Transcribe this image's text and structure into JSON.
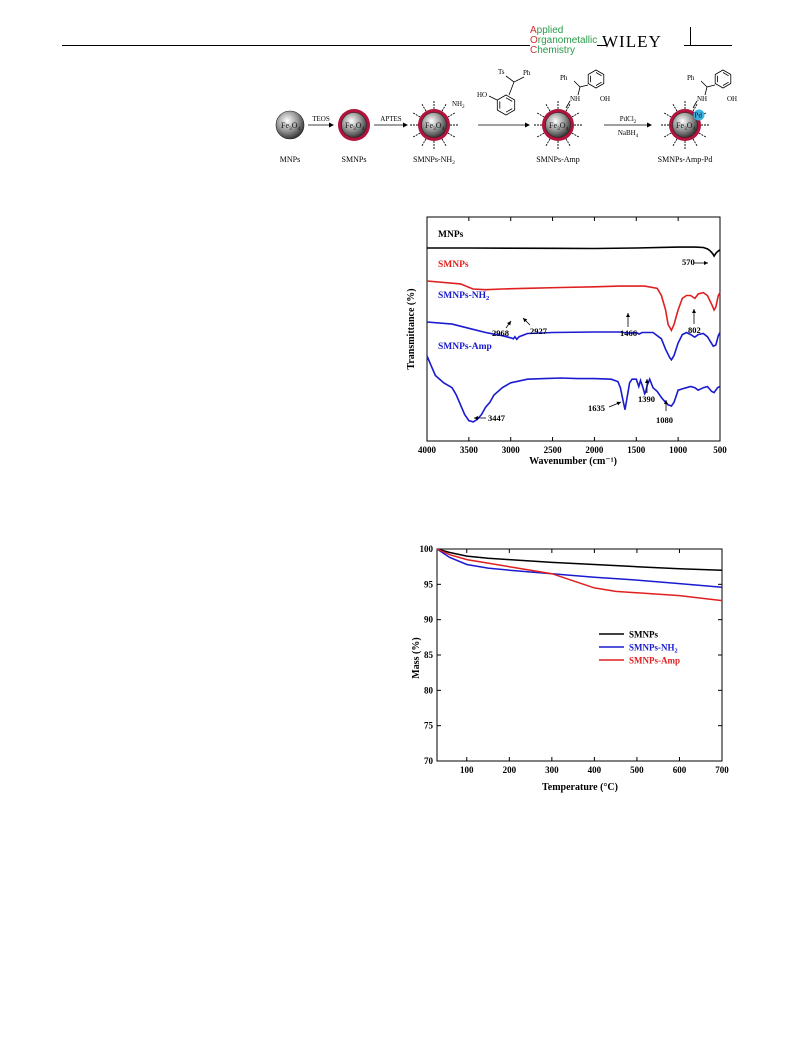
{
  "header": {
    "journal_line1_cap": "A",
    "journal_line1_rest": "pplied",
    "journal_line2_cap": "O",
    "journal_line2_rest": "rganometallic",
    "journal_line3_cap": "C",
    "journal_line3_rest": "hemistry",
    "publisher": "WILEY",
    "page_number": ""
  },
  "scheme": {
    "core_label": "Fe3O4",
    "steps": [
      "TEOS",
      "APTES",
      "",
      "PdCl2",
      "NaBH4"
    ],
    "particles": [
      "MNPs",
      "SMNPs",
      "SMNPs-NH2",
      "SMNPs-Amp",
      "SMNPs-Amp-Pd"
    ],
    "reagent": {
      "ts": "Ts",
      "ph": "Ph",
      "ho": "HO"
    },
    "amp": {
      "ph": "Ph",
      "nh": "NH",
      "oh": "OH"
    },
    "nh2": "NH2",
    "pd": "Pd",
    "colors": {
      "core": "#4a4a4a",
      "shell": "#b0143c",
      "pd": "#3cb4e6"
    }
  },
  "chart_data": [
    {
      "type": "line",
      "title": "",
      "xlabel": "Wavenumber (cm⁻¹)",
      "ylabel": "Transmittance (%)",
      "xlim": [
        4000,
        500
      ],
      "x_ticks": [
        4000,
        3500,
        3000,
        2500,
        2000,
        1500,
        1000,
        500
      ],
      "series": [
        {
          "name": "MNPs",
          "color": "#000000",
          "x": [
            4000,
            3500,
            3000,
            2500,
            2000,
            1500,
            1000,
            800,
            700,
            650,
            620,
            590,
            570,
            550,
            530,
            500
          ],
          "y": [
            92,
            92,
            91.8,
            91.7,
            91.5,
            92,
            93,
            93,
            92.5,
            91,
            89,
            86,
            83,
            86,
            88,
            90
          ]
        },
        {
          "name": "SMNPs",
          "color": "#e02020",
          "x": [
            4000,
            3600,
            3450,
            3300,
            3100,
            2800,
            2400,
            2000,
            1700,
            1400,
            1250,
            1200,
            1150,
            1120,
            1080,
            1050,
            1000,
            950,
            900,
            850,
            800,
            760,
            700,
            650,
            600,
            570,
            550,
            520,
            500
          ],
          "y": [
            82,
            80,
            76.5,
            76,
            76.5,
            77,
            77.5,
            78,
            78.5,
            78.5,
            77,
            72,
            62,
            52,
            48,
            52,
            62,
            70,
            72,
            72,
            70,
            73,
            74,
            72,
            66,
            62,
            64,
            72,
            74
          ]
        },
        {
          "name": "SMNPs-NH2",
          "color": "#1a1ad0",
          "x": [
            4000,
            3700,
            3500,
            3300,
            3100,
            3000,
            2968,
            2950,
            2927,
            2900,
            2800,
            2500,
            2000,
            1700,
            1600,
            1500,
            1466,
            1430,
            1300,
            1200,
            1150,
            1100,
            1080,
            1050,
            1000,
            950,
            900,
            850,
            802,
            760,
            700,
            650,
            580,
            550,
            520,
            500
          ],
          "y": [
            68,
            66,
            62,
            58,
            55,
            53,
            52,
            54,
            51.5,
            54,
            57,
            58,
            58.5,
            58.5,
            57.5,
            58,
            56.5,
            58,
            58,
            52,
            42,
            34,
            32,
            36,
            48,
            56,
            58,
            56,
            53.5,
            56,
            57,
            54,
            45,
            46,
            55,
            58
          ]
        },
        {
          "name": "SMNPs-Amp",
          "color": "#1a1ad0",
          "x": [
            4000,
            3950,
            3900,
            3800,
            3700,
            3650,
            3600,
            3550,
            3500,
            3447,
            3400,
            3350,
            3300,
            3250,
            3200,
            3100,
            3000,
            2800,
            2600,
            2400,
            2200,
            2000,
            1800,
            1720,
            1690,
            1660,
            1635,
            1610,
            1580,
            1550,
            1500,
            1470,
            1450,
            1420,
            1400,
            1390,
            1370,
            1340,
            1300,
            1250,
            1200,
            1150,
            1120,
            1080,
            1050,
            1020,
            1000,
            950,
            900,
            850,
            800,
            760,
            700,
            650,
            600,
            570,
            530,
            500
          ],
          "y": [
            36,
            28,
            20,
            14,
            10,
            4,
            -4,
            -12,
            -17,
            -18,
            -16,
            -12,
            -6,
            -2,
            4,
            10,
            14,
            17,
            17.5,
            18,
            17.5,
            17.5,
            17,
            15,
            10,
            0,
            -8,
            2,
            14,
            17,
            17,
            11,
            16,
            10,
            5,
            6,
            12,
            17,
            10,
            7,
            2,
            -2,
            -4,
            -5,
            -2,
            4,
            8,
            9,
            10,
            11,
            10,
            8,
            10,
            11,
            7,
            6,
            10,
            11
          ]
        }
      ],
      "annotations": [
        "570",
        "2968",
        "2927",
        "1466",
        "802",
        "3447",
        "1635",
        "1390",
        "1080"
      ]
    },
    {
      "type": "line",
      "title": "",
      "xlabel": "Temperature (°C)",
      "ylabel": "Mass (%)",
      "xlim": [
        30,
        700
      ],
      "ylim": [
        70,
        100
      ],
      "x_ticks": [
        100,
        200,
        300,
        400,
        500,
        600,
        700
      ],
      "y_ticks": [
        70,
        75,
        80,
        85,
        90,
        95,
        100
      ],
      "legend": "right-middle",
      "series": [
        {
          "name": "SMNPs",
          "color": "#000000",
          "x": [
            30,
            60,
            100,
            150,
            200,
            300,
            400,
            500,
            600,
            700
          ],
          "y": [
            100,
            99.5,
            99.0,
            98.7,
            98.5,
            98.1,
            97.8,
            97.5,
            97.2,
            97.0
          ]
        },
        {
          "name": "SMNPs-NH2",
          "color": "#1a1ad0",
          "x": [
            30,
            60,
            100,
            150,
            200,
            300,
            400,
            500,
            600,
            700
          ],
          "y": [
            100,
            98.8,
            97.8,
            97.3,
            97.0,
            96.5,
            96.0,
            95.6,
            95.1,
            94.6
          ]
        },
        {
          "name": "SMNPs-Amp",
          "color": "#e02020",
          "x": [
            30,
            60,
            100,
            150,
            200,
            250,
            300,
            350,
            400,
            450,
            500,
            600,
            700
          ],
          "y": [
            100,
            99.2,
            98.5,
            98.0,
            97.5,
            97.0,
            96.5,
            95.5,
            94.5,
            94.0,
            93.8,
            93.4,
            92.7
          ]
        }
      ]
    }
  ]
}
